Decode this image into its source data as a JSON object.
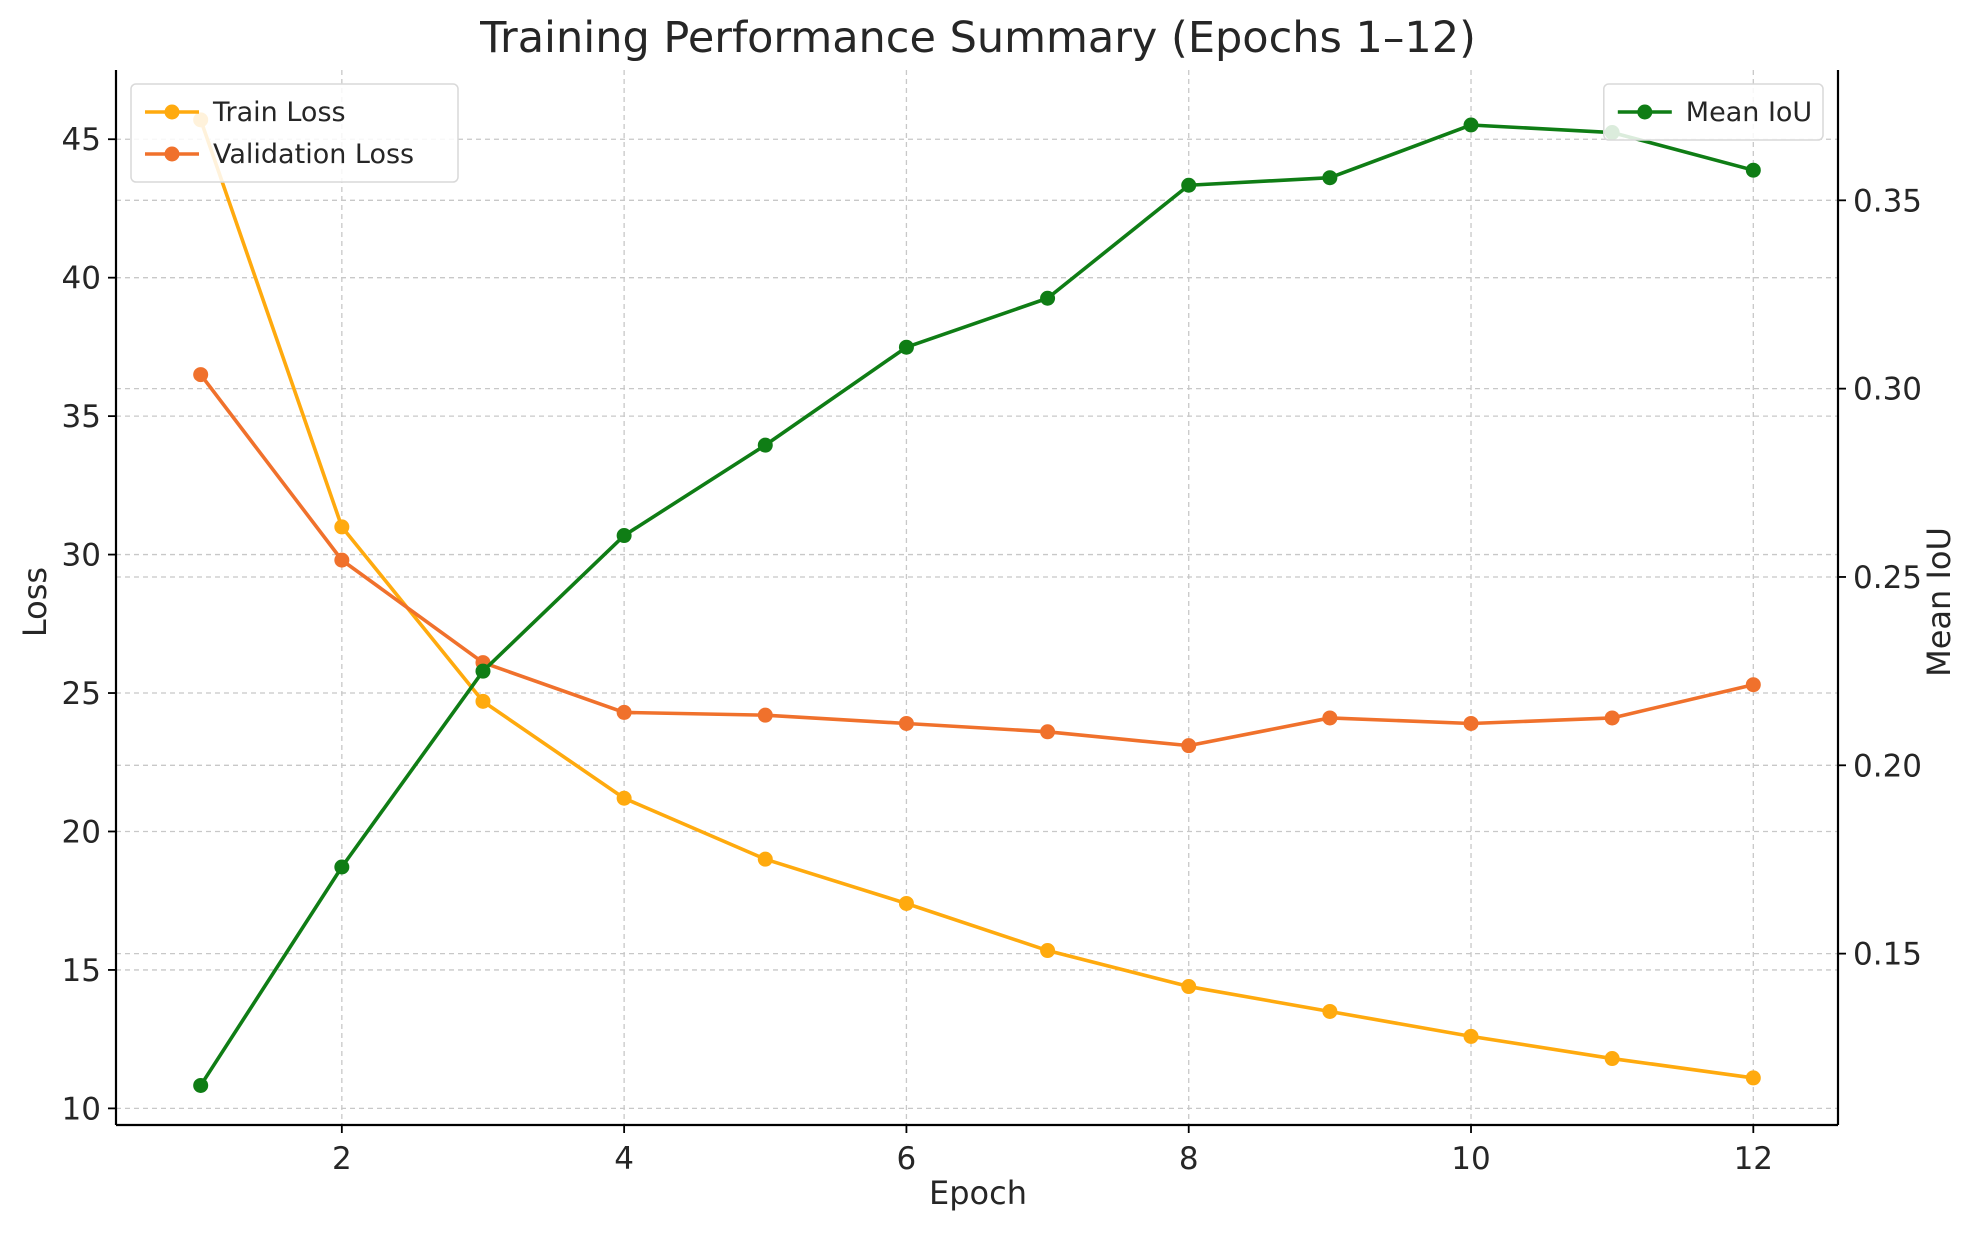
{
  "chart_data": {
    "type": "line",
    "title": "Training Performance Summary (Epochs 1–12)",
    "xlabel": "Epoch",
    "ylabel": "Loss",
    "y2label": "Mean IoU",
    "x": [
      1,
      2,
      3,
      4,
      5,
      6,
      7,
      8,
      9,
      10,
      11,
      12
    ],
    "xlim": [
      0.4,
      12.6
    ],
    "ylim": [
      9.4,
      47.5
    ],
    "y2lim": [
      0.1045,
      0.3846
    ],
    "xticks": [
      2,
      4,
      6,
      8,
      10,
      12
    ],
    "yticks": [
      10,
      15,
      20,
      25,
      30,
      35,
      40,
      45
    ],
    "y2ticks": [
      0.15,
      0.2,
      0.25,
      0.3,
      0.35
    ],
    "y2tick_labels": [
      "0.15",
      "0.20",
      "0.25",
      "0.30",
      "0.35"
    ],
    "grid": true,
    "series": [
      {
        "name": "Train Loss",
        "axis": "left",
        "color": "#FFAA0E",
        "values": [
          45.7,
          31.0,
          24.7,
          21.2,
          19.0,
          17.4,
          15.7,
          14.4,
          13.5,
          12.6,
          11.8,
          11.1
        ]
      },
      {
        "name": "Validation Loss",
        "axis": "left",
        "color": "#F0712C",
        "values": [
          36.5,
          29.8,
          26.1,
          24.3,
          24.2,
          23.9,
          23.6,
          23.1,
          24.1,
          23.9,
          24.1,
          25.3
        ]
      },
      {
        "name": "Mean IoU",
        "axis": "right",
        "color": "#0F7D15",
        "values": [
          0.115,
          0.173,
          0.225,
          0.261,
          0.285,
          0.311,
          0.324,
          0.354,
          0.356,
          0.37,
          0.368,
          0.358
        ]
      }
    ],
    "legends": [
      {
        "placement": "upper-left",
        "entries": [
          "Train Loss",
          "Validation Loss"
        ]
      },
      {
        "placement": "upper-right",
        "entries": [
          "Mean IoU"
        ]
      }
    ]
  }
}
